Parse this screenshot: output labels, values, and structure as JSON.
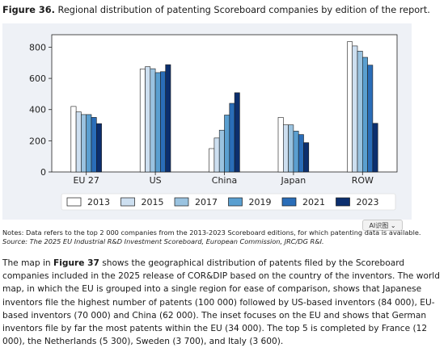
{
  "caption": {
    "label": "Figure 36.",
    "text": " Regional distribution of patenting Scoreboard companies by edition of the report."
  },
  "chart_data": {
    "type": "bar",
    "categories": [
      "EU 27",
      "US",
      "China",
      "Japan",
      "ROW"
    ],
    "series": [
      {
        "name": "2013",
        "color": "#ffffff",
        "values": [
          420,
          660,
          150,
          350,
          835
        ]
      },
      {
        "name": "2015",
        "color": "#cddff0",
        "values": [
          385,
          675,
          218,
          302,
          808
        ]
      },
      {
        "name": "2017",
        "color": "#9ac3e0",
        "values": [
          368,
          662,
          268,
          302,
          775
        ]
      },
      {
        "name": "2019",
        "color": "#5a9fd0",
        "values": [
          368,
          637,
          365,
          262,
          735
        ]
      },
      {
        "name": "2021",
        "color": "#2a6db8",
        "values": [
          350,
          643,
          440,
          240,
          685
        ]
      },
      {
        "name": "2023",
        "color": "#0c2f6e",
        "values": [
          310,
          688,
          508,
          188,
          312
        ]
      }
    ],
    "y_ticks": [
      "0",
      "200",
      "400",
      "600",
      "800"
    ],
    "ylim": [
      0,
      880
    ],
    "grid": false,
    "legend_position": "bottom"
  },
  "ai_badge": "AI识图 ⌄",
  "notes": {
    "line1": "Notes: Data refers to the top 2 000 companies from the 2013-2023 Scoreboard editions, for which patenting data is available.",
    "line2": "Source: The 2025 EU Industrial R&D Investment Scoreboard, European Commission, JRC/DG R&I."
  },
  "body": {
    "pre": "The map in ",
    "ref": "Figure 37",
    "rest": " shows the geographical distribution of patents filed by the Scoreboard companies included in the 2025 release of COR&DIP based on the country of the inventors. The world map, in which the EU is grouped into a single region for ease of comparison, shows that Japanese inventors file the highest number of patents (100 000) followed by US-based inventors (84 000), EU-based inventors (70 000) and China (62 000). The inset focuses on the EU and shows that German inventors file by far the most patents within the EU (34 000). The top 5 is completed by France (12 000), the Netherlands (5 300), Sweden (3 700), and Italy (3 600)."
  }
}
